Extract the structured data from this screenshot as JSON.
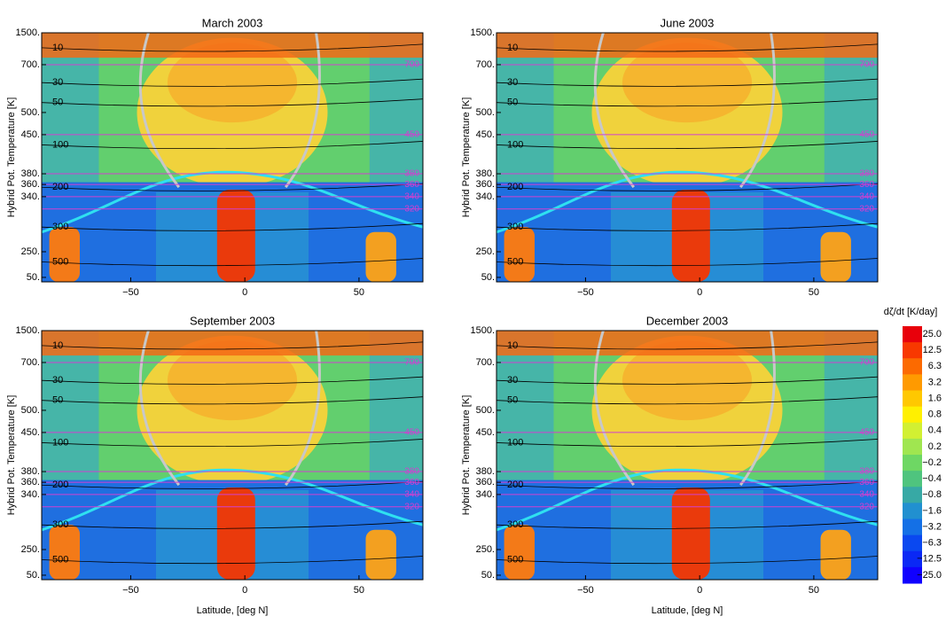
{
  "chart_data": [
    {
      "type": "contour",
      "title": "March 2003",
      "ylabel": "Hybrid Pot. Temperature [K]",
      "xlim": [
        -89,
        78
      ],
      "xticks": [
        {
          "value": -50,
          "label": "−50"
        },
        0,
        50
      ],
      "yticks": [
        {
          "value": 1500,
          "label": "1500."
        },
        {
          "value": 700,
          "label": "700."
        },
        {
          "value": 500,
          "label": "500."
        },
        {
          "value": 450,
          "label": "450."
        },
        {
          "value": 380,
          "label": "380."
        },
        {
          "value": 360,
          "label": "360."
        },
        {
          "value": 340,
          "label": "340."
        },
        {
          "value": 250,
          "label": "250."
        },
        {
          "value": 50,
          "label": "50."
        }
      ],
      "isentropes": [
        700,
        450,
        380,
        360,
        340,
        320
      ],
      "contour_levels": [
        10,
        30,
        50,
        100,
        200,
        300,
        500
      ]
    },
    {
      "type": "contour",
      "title": "June 2003",
      "ylabel": "Hybrid Pot. Temperature [K]",
      "xlim": [
        -89,
        78
      ],
      "xticks": [
        {
          "value": -50,
          "label": "−50"
        },
        0,
        50
      ],
      "yticks": [
        {
          "value": 1500,
          "label": "1500."
        },
        {
          "value": 700,
          "label": "700."
        },
        {
          "value": 500,
          "label": "500."
        },
        {
          "value": 450,
          "label": "450."
        },
        {
          "value": 380,
          "label": "380."
        },
        {
          "value": 360,
          "label": "360."
        },
        {
          "value": 340,
          "label": "340."
        },
        {
          "value": 250,
          "label": "250."
        },
        {
          "value": 50,
          "label": "50."
        }
      ],
      "isentropes": [
        700,
        450,
        380,
        360,
        340,
        320
      ],
      "contour_levels": [
        10,
        30,
        50,
        100,
        200,
        300,
        500
      ]
    },
    {
      "type": "contour",
      "title": "September 2003",
      "ylabel": "Hybrid Pot. Temperature [K]",
      "xlabel": "Latitude, [deg N]",
      "xlim": [
        -89,
        78
      ],
      "xticks": [
        {
          "value": -50,
          "label": "−50"
        },
        0,
        50
      ],
      "yticks": [
        {
          "value": 1500,
          "label": "1500."
        },
        {
          "value": 700,
          "label": "700."
        },
        {
          "value": 500,
          "label": "500."
        },
        {
          "value": 450,
          "label": "450."
        },
        {
          "value": 380,
          "label": "380."
        },
        {
          "value": 360,
          "label": "360."
        },
        {
          "value": 340,
          "label": "340."
        },
        {
          "value": 250,
          "label": "250."
        },
        {
          "value": 50,
          "label": "50."
        }
      ],
      "isentropes": [
        700,
        450,
        380,
        360,
        340,
        320
      ],
      "contour_levels": [
        10,
        30,
        50,
        100,
        200,
        300,
        500
      ]
    },
    {
      "type": "contour",
      "title": "December 2003",
      "ylabel": "Hybrid Pot. Temperature [K]",
      "xlabel": "Latitude, [deg N]",
      "xlim": [
        -89,
        78
      ],
      "xticks": [
        {
          "value": -50,
          "label": "−50"
        },
        0,
        50
      ],
      "yticks": [
        {
          "value": 1500,
          "label": "1500."
        },
        {
          "value": 700,
          "label": "700."
        },
        {
          "value": 500,
          "label": "500."
        },
        {
          "value": 450,
          "label": "450."
        },
        {
          "value": 380,
          "label": "380."
        },
        {
          "value": 360,
          "label": "360."
        },
        {
          "value": 340,
          "label": "340."
        },
        {
          "value": 250,
          "label": "250."
        },
        {
          "value": 50,
          "label": "50."
        }
      ],
      "isentropes": [
        700,
        450,
        380,
        360,
        340,
        320
      ],
      "contour_levels": [
        10,
        30,
        50,
        100,
        200,
        300,
        500
      ]
    },
    {
      "type": "colorbar",
      "title": "dζ/dt [K/day]",
      "ticks": [
        {
          "value": 25,
          "label": "25.0"
        },
        12.5,
        6.3,
        3.2,
        1.6,
        0.8,
        0.4,
        0.2,
        {
          "value": -0.2,
          "label": "−0.2"
        },
        {
          "value": -0.4,
          "label": "−0.4"
        },
        {
          "value": -0.8,
          "label": "−0.8"
        },
        {
          "value": -1.6,
          "label": "−1.6"
        },
        {
          "value": -3.2,
          "label": "−3.2"
        },
        {
          "value": -6.3,
          "label": "−6.3"
        },
        {
          "value": -12.5,
          "label": "−12.5"
        },
        {
          "value": -25,
          "label": "−25.0"
        }
      ],
      "colors": [
        "#e8000b",
        "#f83800",
        "#fc6a00",
        "#ff9a00",
        "#ffc800",
        "#fff000",
        "#d2f032",
        "#a0e650",
        "#6ed764",
        "#4fc47e",
        "#37a9a5",
        "#2190d0",
        "#1470e6",
        "#0a48f0",
        "#0a28f5",
        "#1000ff"
      ]
    }
  ]
}
